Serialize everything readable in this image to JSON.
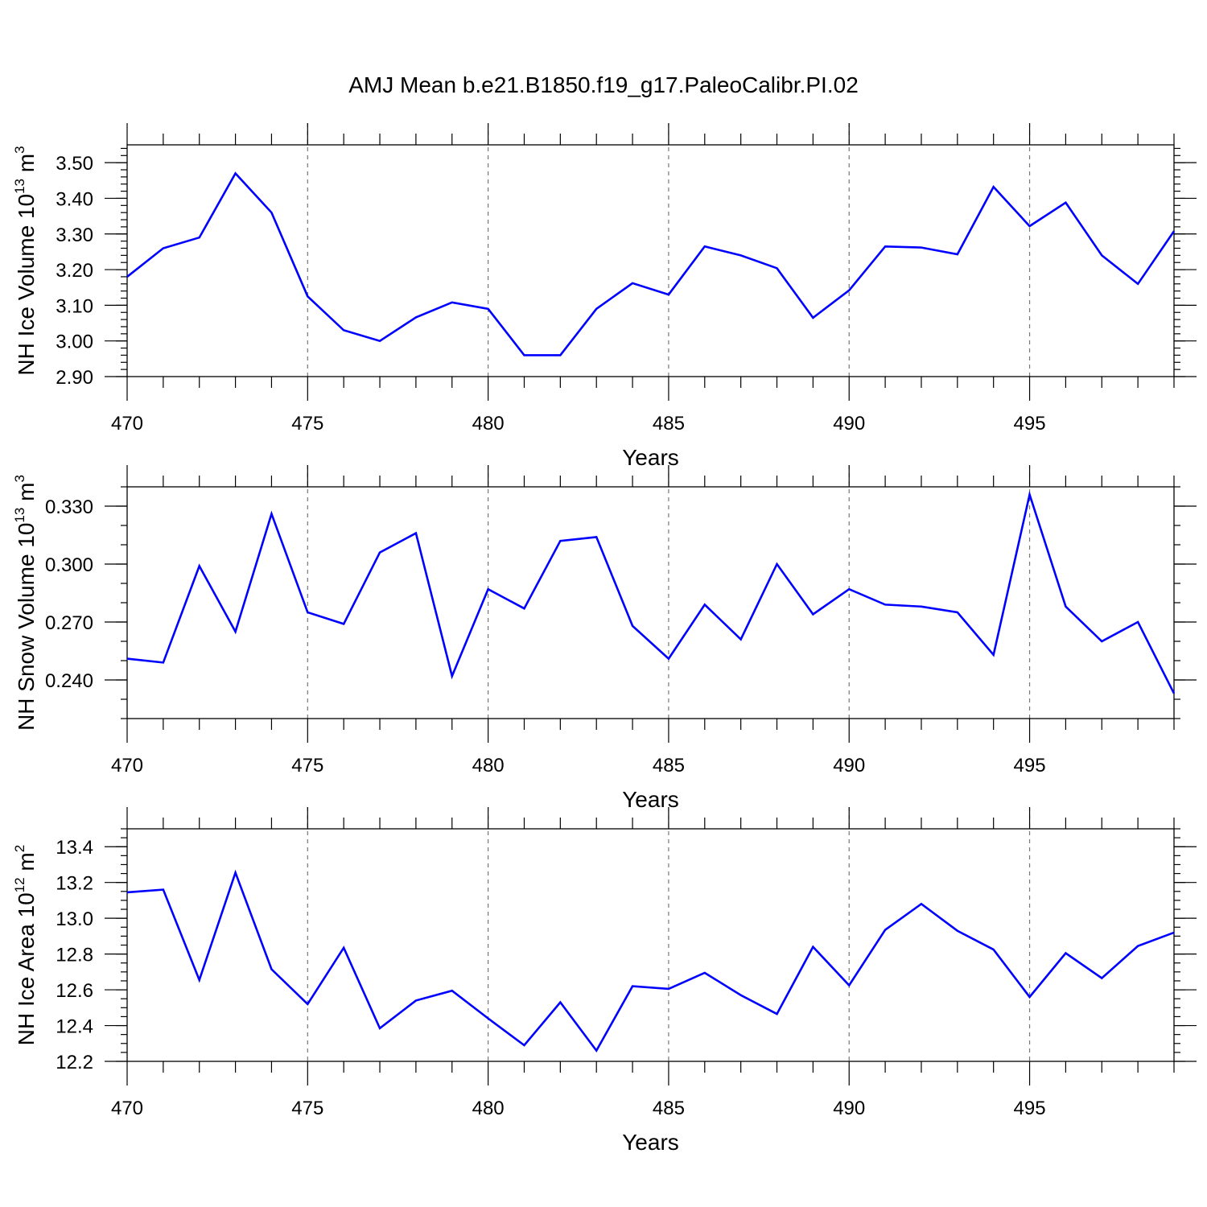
{
  "title": "AMJ Mean b.e21.B1850.f19_g17.PaleoCalibr.PI.02",
  "line_color": "#0000ff",
  "chart_data": [
    {
      "type": "line",
      "xlabel": "Years",
      "ylabel": {
        "text": "NH Ice Volume 10",
        "exp": "13",
        "unit": " m",
        "unit_exp": "3"
      },
      "xlim": [
        470,
        499
      ],
      "ylim": [
        2.9,
        3.55
      ],
      "xticks": [
        470,
        475,
        480,
        485,
        490,
        495
      ],
      "yticks": [
        2.9,
        3.0,
        3.1,
        3.2,
        3.3,
        3.4,
        3.5
      ],
      "ytick_labels": [
        "2.90",
        "3.00",
        "3.10",
        "3.20",
        "3.30",
        "3.40",
        "3.50"
      ],
      "y_minor_step": 0.02,
      "grid_x": [
        475,
        480,
        485,
        490,
        495
      ],
      "x": [
        470,
        471,
        472,
        473,
        474,
        475,
        476,
        477,
        478,
        479,
        480,
        481,
        482,
        483,
        484,
        485,
        486,
        487,
        488,
        489,
        490,
        491,
        492,
        493,
        494,
        495,
        496,
        497,
        498,
        499
      ],
      "values": [
        3.18,
        3.26,
        3.29,
        3.47,
        3.36,
        3.125,
        3.03,
        3.0,
        3.066,
        3.108,
        3.09,
        2.96,
        2.96,
        3.09,
        3.162,
        3.13,
        3.265,
        3.24,
        3.204,
        3.065,
        3.142,
        3.265,
        3.262,
        3.243,
        3.432,
        3.322,
        3.388,
        3.24,
        3.16,
        3.308
      ]
    },
    {
      "type": "line",
      "xlabel": "Years",
      "ylabel": {
        "text": "NH Snow Volume 10",
        "exp": "13",
        "unit": " m",
        "unit_exp": "3"
      },
      "xlim": [
        470,
        499
      ],
      "ylim": [
        0.22,
        0.34
      ],
      "xticks": [
        470,
        475,
        480,
        485,
        490,
        495
      ],
      "yticks": [
        0.24,
        0.27,
        0.3,
        0.33
      ],
      "ytick_labels": [
        "0.240",
        "0.270",
        "0.300",
        "0.330"
      ],
      "y_minor_step": 0.01,
      "grid_x": [
        475,
        480,
        485,
        490,
        495
      ],
      "x": [
        470,
        471,
        472,
        473,
        474,
        475,
        476,
        477,
        478,
        479,
        480,
        481,
        482,
        483,
        484,
        485,
        486,
        487,
        488,
        489,
        490,
        491,
        492,
        493,
        494,
        495,
        496,
        497,
        498,
        499
      ],
      "values": [
        0.251,
        0.249,
        0.299,
        0.265,
        0.326,
        0.275,
        0.269,
        0.306,
        0.316,
        0.242,
        0.287,
        0.277,
        0.312,
        0.314,
        0.268,
        0.251,
        0.279,
        0.261,
        0.3,
        0.274,
        0.287,
        0.279,
        0.278,
        0.275,
        0.253,
        0.336,
        0.278,
        0.26,
        0.27,
        0.233
      ]
    },
    {
      "type": "line",
      "xlabel": "Years",
      "ylabel": {
        "text": "NH Ice Area 10",
        "exp": "12",
        "unit": " m",
        "unit_exp": "2"
      },
      "xlim": [
        470,
        499
      ],
      "ylim": [
        12.2,
        13.5
      ],
      "xticks": [
        470,
        475,
        480,
        485,
        490,
        495
      ],
      "yticks": [
        12.2,
        12.4,
        12.6,
        12.8,
        13.0,
        13.2,
        13.4
      ],
      "ytick_labels": [
        "12.2",
        "12.4",
        "12.6",
        "12.8",
        "13.0",
        "13.2",
        "13.4"
      ],
      "y_minor_step": 0.05,
      "grid_x": [
        475,
        480,
        485,
        490,
        495
      ],
      "x": [
        470,
        471,
        472,
        473,
        474,
        475,
        476,
        477,
        478,
        479,
        480,
        481,
        482,
        483,
        484,
        485,
        486,
        487,
        488,
        489,
        490,
        491,
        492,
        493,
        494,
        495,
        496,
        497,
        498,
        499
      ],
      "values": [
        13.145,
        13.16,
        12.655,
        13.255,
        12.715,
        12.52,
        12.835,
        12.385,
        12.54,
        12.595,
        12.44,
        12.29,
        12.53,
        12.26,
        12.62,
        12.605,
        12.695,
        12.57,
        12.465,
        12.84,
        12.625,
        12.935,
        13.08,
        12.93,
        12.825,
        12.56,
        12.805,
        12.665,
        12.845,
        12.92
      ]
    }
  ]
}
